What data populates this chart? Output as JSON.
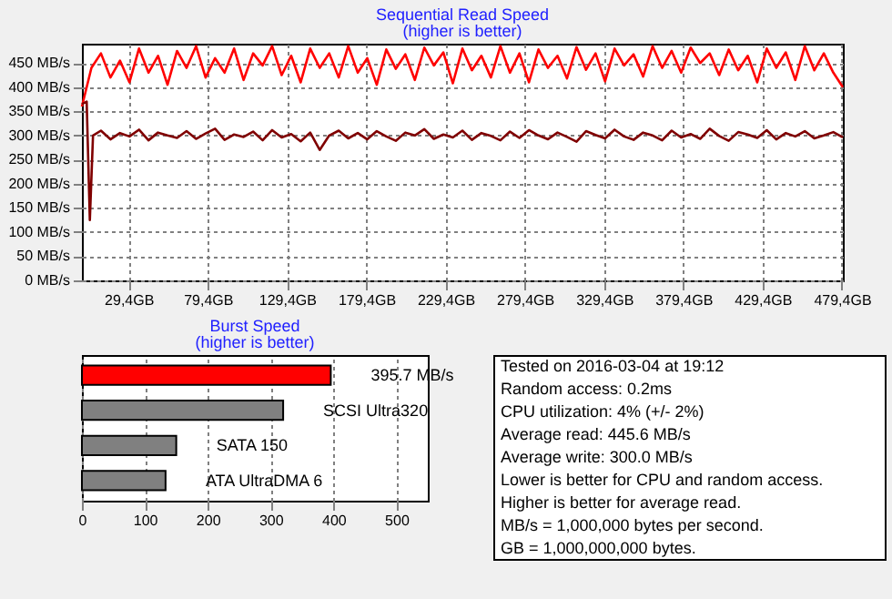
{
  "chart_data": [
    {
      "type": "line",
      "title": "Sequential Read Speed",
      "subtitle": "(higher is better)",
      "x": [
        0,
        6,
        12,
        18,
        24,
        30,
        36,
        42,
        48,
        54,
        60,
        66,
        72,
        78,
        84,
        90,
        96,
        102,
        108,
        114,
        120,
        126,
        132,
        138,
        144,
        150,
        156,
        162,
        168,
        174,
        180,
        186,
        192,
        198,
        204,
        210,
        216,
        222,
        228,
        234,
        240,
        246,
        252,
        258,
        264,
        270,
        276,
        282,
        288,
        294,
        300,
        306,
        312,
        318,
        324,
        330,
        336,
        342,
        348,
        354,
        360,
        366,
        372,
        378,
        384,
        390,
        396,
        402,
        408,
        414,
        420,
        426,
        432,
        438,
        444,
        450,
        456,
        462,
        468,
        474,
        480
      ],
      "series": [
        {
          "color": "#ff0000",
          "values": [
            360,
            440,
            470,
            420,
            455,
            410,
            480,
            430,
            465,
            405,
            475,
            440,
            485,
            420,
            460,
            430,
            480,
            415,
            470,
            445,
            485,
            425,
            465,
            410,
            480,
            440,
            470,
            420,
            485,
            430,
            460,
            405,
            478,
            438,
            468,
            415,
            482,
            445,
            472,
            408,
            480,
            435,
            465,
            420,
            485,
            430,
            470,
            410,
            478,
            440,
            465,
            418,
            483,
            436,
            470,
            412,
            480,
            445,
            468,
            422,
            485,
            440,
            475,
            430,
            482,
            450,
            470,
            425,
            478,
            435,
            465,
            410,
            480,
            440,
            472,
            415,
            485,
            435,
            470,
            430,
            400
          ]
        },
        {
          "color": "#800000",
          "x": [
            0,
            3,
            5,
            7,
            12,
            18,
            24,
            30,
            36,
            42,
            48,
            54,
            60,
            66,
            72,
            78,
            84,
            90,
            96,
            102,
            108,
            114,
            120,
            126,
            132,
            138,
            144,
            150,
            156,
            162,
            168,
            174,
            180,
            186,
            192,
            198,
            204,
            210,
            216,
            222,
            228,
            234,
            240,
            246,
            252,
            258,
            264,
            270,
            276,
            282,
            288,
            294,
            300,
            306,
            312,
            318,
            324,
            330,
            336,
            342,
            348,
            354,
            360,
            366,
            372,
            378,
            384,
            390,
            396,
            402,
            408,
            414,
            420,
            426,
            432,
            438,
            444,
            450,
            456,
            462,
            468,
            474,
            480
          ],
          "values": [
            365,
            370,
            125,
            300,
            310,
            292,
            305,
            298,
            312,
            290,
            306,
            300,
            295,
            309,
            293,
            304,
            314,
            291,
            302,
            297,
            308,
            290,
            311,
            296,
            303,
            288,
            306,
            270,
            300,
            310,
            294,
            305,
            292,
            309,
            298,
            289,
            306,
            300,
            313,
            293,
            302,
            296,
            310,
            291,
            305,
            299,
            290,
            308,
            295,
            311,
            300,
            292,
            306,
            297,
            287,
            309,
            301,
            294,
            312,
            298,
            291,
            306,
            300,
            290,
            310,
            296,
            303,
            293,
            314,
            299,
            289,
            307,
            302,
            295,
            311,
            292,
            305,
            298,
            309,
            294,
            300,
            307,
            296
          ]
        }
      ],
      "xlim": [
        0,
        480
      ],
      "xticks": [
        {
          "value": 29.4,
          "label": "29,4GB"
        },
        {
          "value": 79.4,
          "label": "79,4GB"
        },
        {
          "value": 129.4,
          "label": "129,4GB"
        },
        {
          "value": 179.4,
          "label": "179,4GB"
        },
        {
          "value": 229.4,
          "label": "229,4GB"
        },
        {
          "value": 279.4,
          "label": "279,4GB"
        },
        {
          "value": 329.4,
          "label": "329,4GB"
        },
        {
          "value": 379.4,
          "label": "379,4GB"
        },
        {
          "value": 429.4,
          "label": "429,4GB"
        },
        {
          "value": 479.4,
          "label": "479,4GB"
        }
      ],
      "ylim": [
        0,
        490
      ],
      "yticks": [
        {
          "value": 0,
          "label": "0 MB/s"
        },
        {
          "value": 50,
          "label": "50 MB/s"
        },
        {
          "value": 100,
          "label": "100 MB/s"
        },
        {
          "value": 150,
          "label": "150 MB/s"
        },
        {
          "value": 200,
          "label": "200 MB/s"
        },
        {
          "value": 250,
          "label": "250 MB/s"
        },
        {
          "value": 300,
          "label": "300 MB/s"
        },
        {
          "value": 350,
          "label": "350 MB/s"
        },
        {
          "value": 400,
          "label": "400 MB/s"
        },
        {
          "value": 450,
          "label": "450 MB/s"
        }
      ],
      "grid": true,
      "line_style": "solid"
    },
    {
      "type": "bar",
      "orientation": "horizontal",
      "title": "Burst Speed",
      "subtitle": "(higher is better)",
      "categories": [
        null,
        "SCSI Ultra320",
        "SATA 150",
        "ATA UltraDMA 6"
      ],
      "values": [
        395.7,
        320,
        150,
        133
      ],
      "colors": [
        "#ff0000",
        "#808080",
        "#808080",
        "#808080"
      ],
      "value_labels": [
        "395.7 MB/s",
        null,
        null,
        null
      ],
      "xlim": [
        0,
        550
      ],
      "xticks": [
        0,
        100,
        200,
        300,
        400,
        500
      ],
      "grid": "x"
    },
    {
      "type": "other",
      "annotations": [
        "Tested on 2016-03-04 at 19:12",
        "Random access: 0.2ms",
        "CPU utilization: 4% (+/- 2%)",
        "Average read: 445.6 MB/s",
        "Average write: 300.0 MB/s",
        "Lower is better for CPU and random access.",
        "Higher is better for average read.",
        "MB/s = 1,000,000 bytes per second.",
        "GB = 1,000,000,000 bytes."
      ]
    }
  ]
}
